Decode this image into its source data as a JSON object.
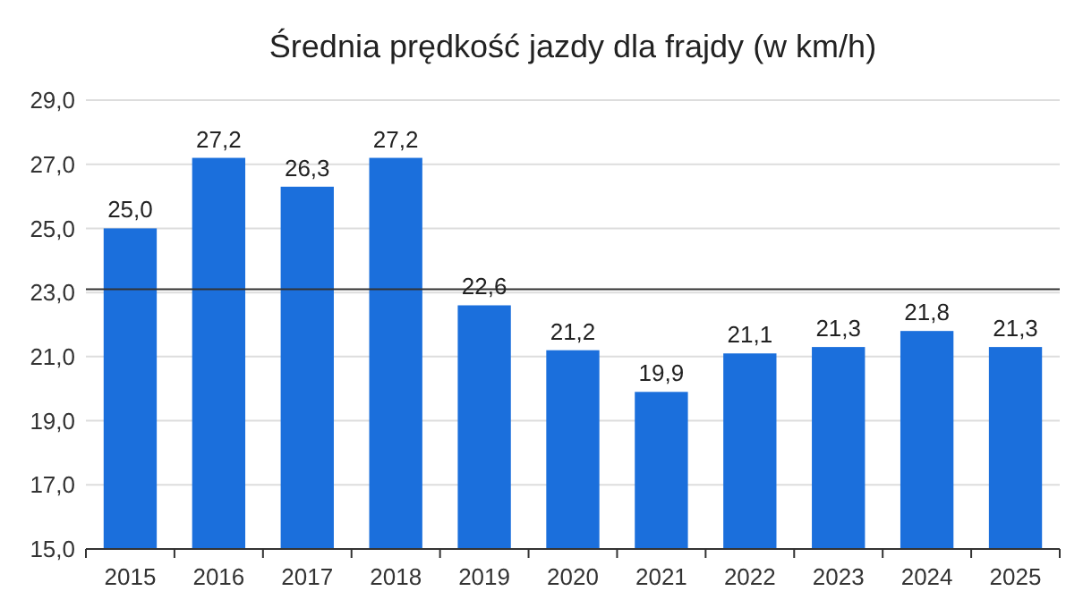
{
  "chart_data": {
    "type": "bar",
    "title": "Średnia prędkość jazdy dla frajdy (w km/h)",
    "categories": [
      "2015",
      "2016",
      "2017",
      "2018",
      "2019",
      "2020",
      "2021",
      "2022",
      "2023",
      "2024",
      "2025"
    ],
    "values": [
      25.0,
      27.2,
      26.3,
      27.2,
      22.6,
      21.2,
      19.9,
      21.1,
      21.3,
      21.8,
      21.3
    ],
    "color": "#1b6fdc",
    "ylim": [
      15,
      29
    ],
    "yticks": [
      {
        "value": 15,
        "label": "15,0"
      },
      {
        "value": 17,
        "label": "17,0"
      },
      {
        "value": 19,
        "label": "19,0"
      },
      {
        "value": 21,
        "label": "21,0"
      },
      {
        "value": 23,
        "label": "23,0"
      },
      {
        "value": 25,
        "label": "25,0"
      },
      {
        "value": 27,
        "label": "27,0"
      },
      {
        "value": 29,
        "label": "29,0"
      }
    ],
    "value_labels": [
      "25,0",
      "27,2",
      "26,3",
      "27,2",
      "22,6",
      "21,2",
      "19,9",
      "21,1",
      "21,3",
      "21,8",
      "21,3"
    ],
    "ref_lines": [
      {
        "axis": "y",
        "value": 23.1,
        "color": "#333333"
      }
    ],
    "grid": "y"
  }
}
